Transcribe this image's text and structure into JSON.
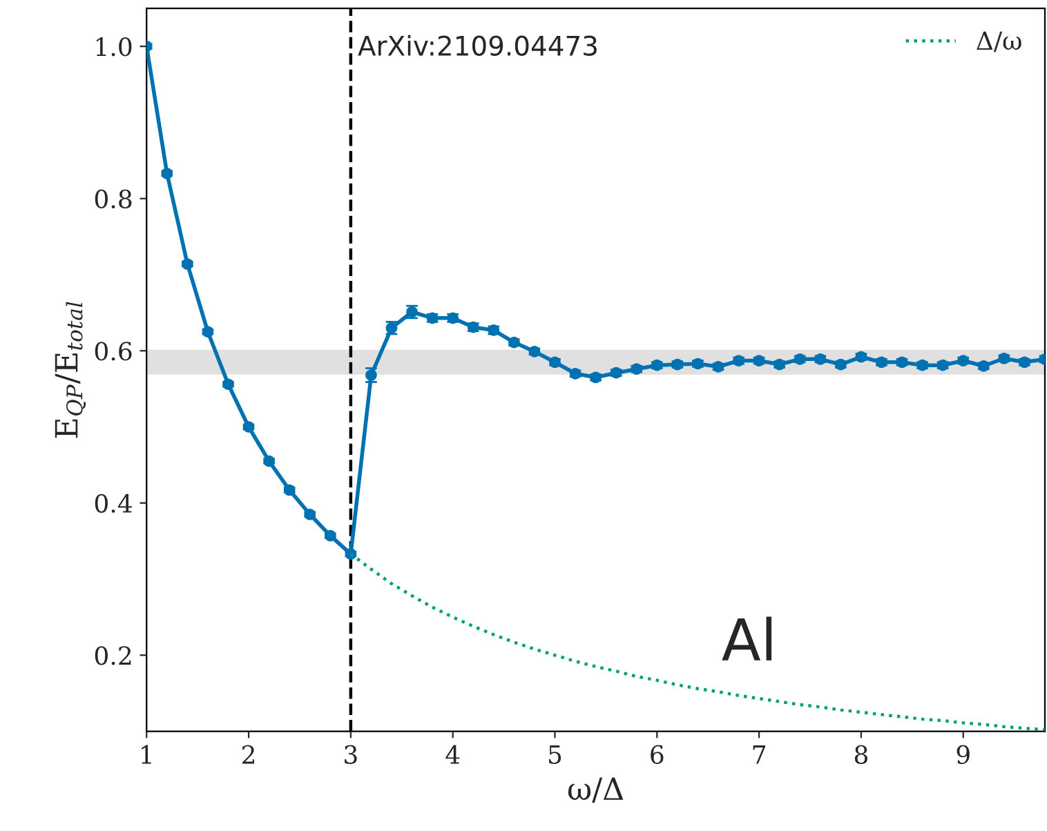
{
  "chart_data": {
    "type": "line",
    "xlabel": "ω/Δ",
    "ylabel": "E$_{QP}$/E$_{total}$",
    "xlim": [
      1,
      9.8
    ],
    "ylim": [
      0.1,
      1.05
    ],
    "xticks": [
      1,
      2,
      3,
      4,
      5,
      6,
      7,
      8,
      9
    ],
    "yticks": [
      0.2,
      0.4,
      0.6,
      0.8,
      {
        "value": 1,
        "label": "1.0"
      }
    ],
    "grid": false,
    "legend": "top right",
    "annotations": [
      "ArXiv:2109.04473",
      "Al"
    ],
    "ref_lines": [
      {
        "axis": "x",
        "value": 3,
        "color": "#000000",
        "line_style": "dashed"
      }
    ],
    "bands": [
      {
        "axis": "y",
        "from": 0.57,
        "to": 0.6,
        "color": "#dddddd"
      }
    ],
    "series": [
      {
        "color": "#0072b2",
        "marker": "circle",
        "line_style": "solid",
        "x": [
          1,
          1.2,
          1.4,
          1.6,
          1.8,
          2,
          2.2,
          2.4,
          2.6,
          2.8,
          3,
          3.2,
          3.4,
          3.6,
          3.8,
          4,
          4.2,
          4.4,
          4.6,
          4.8,
          5,
          5.2,
          5.4,
          5.6,
          5.8,
          6,
          6.2,
          6.4,
          6.6,
          6.8,
          7,
          7.2,
          7.4,
          7.6,
          7.8,
          8,
          8.2,
          8.4,
          8.6,
          8.8,
          9,
          9.2,
          9.4,
          9.6,
          9.8
        ],
        "values": [
          1.0,
          0.833,
          0.714,
          0.625,
          0.556,
          0.5,
          0.455,
          0.417,
          0.385,
          0.357,
          0.333,
          0.568,
          0.63,
          0.651,
          0.643,
          0.643,
          0.631,
          0.627,
          0.611,
          0.599,
          0.585,
          0.57,
          0.565,
          0.571,
          0.576,
          0.581,
          0.582,
          0.583,
          0.579,
          0.587,
          0.587,
          0.582,
          0.589,
          0.589,
          0.582,
          0.592,
          0.585,
          0.585,
          0.581,
          0.581,
          0.587,
          0.58,
          0.59,
          0.585,
          0.589
        ],
        "errors": [
          0.003,
          0.003,
          0.003,
          0.003,
          0.003,
          0.003,
          0.003,
          0.003,
          0.003,
          0.003,
          0.003,
          0.009,
          0.008,
          0.008,
          0.005,
          0.005,
          0.005,
          0.005,
          0.004,
          0.004,
          0.004,
          0.004,
          0.004,
          0.004,
          0.004,
          0.004,
          0.004,
          0.004,
          0.004,
          0.004,
          0.004,
          0.004,
          0.004,
          0.004,
          0.004,
          0.004,
          0.004,
          0.004,
          0.004,
          0.004,
          0.004,
          0.004,
          0.004,
          0.004,
          0.004
        ]
      },
      {
        "name": "Δ/ω",
        "color": "#009e73",
        "marker": "none",
        "line_style": "dotted",
        "x": [
          3,
          3.2,
          3.4,
          3.6,
          3.8,
          4,
          4.2,
          4.4,
          4.6,
          4.8,
          5,
          5.2,
          5.4,
          5.6,
          5.8,
          6,
          6.2,
          6.4,
          6.6,
          6.8,
          7,
          7.2,
          7.4,
          7.6,
          7.8,
          8,
          8.2,
          8.4,
          8.6,
          8.8,
          9,
          9.2,
          9.4,
          9.6,
          9.8
        ],
        "values": [
          0.333,
          0.313,
          0.294,
          0.278,
          0.263,
          0.25,
          0.238,
          0.227,
          0.217,
          0.208,
          0.2,
          0.192,
          0.185,
          0.179,
          0.172,
          0.167,
          0.161,
          0.156,
          0.152,
          0.147,
          0.143,
          0.139,
          0.135,
          0.132,
          0.128,
          0.125,
          0.122,
          0.119,
          0.116,
          0.114,
          0.111,
          0.109,
          0.106,
          0.104,
          0.102
        ]
      }
    ]
  }
}
